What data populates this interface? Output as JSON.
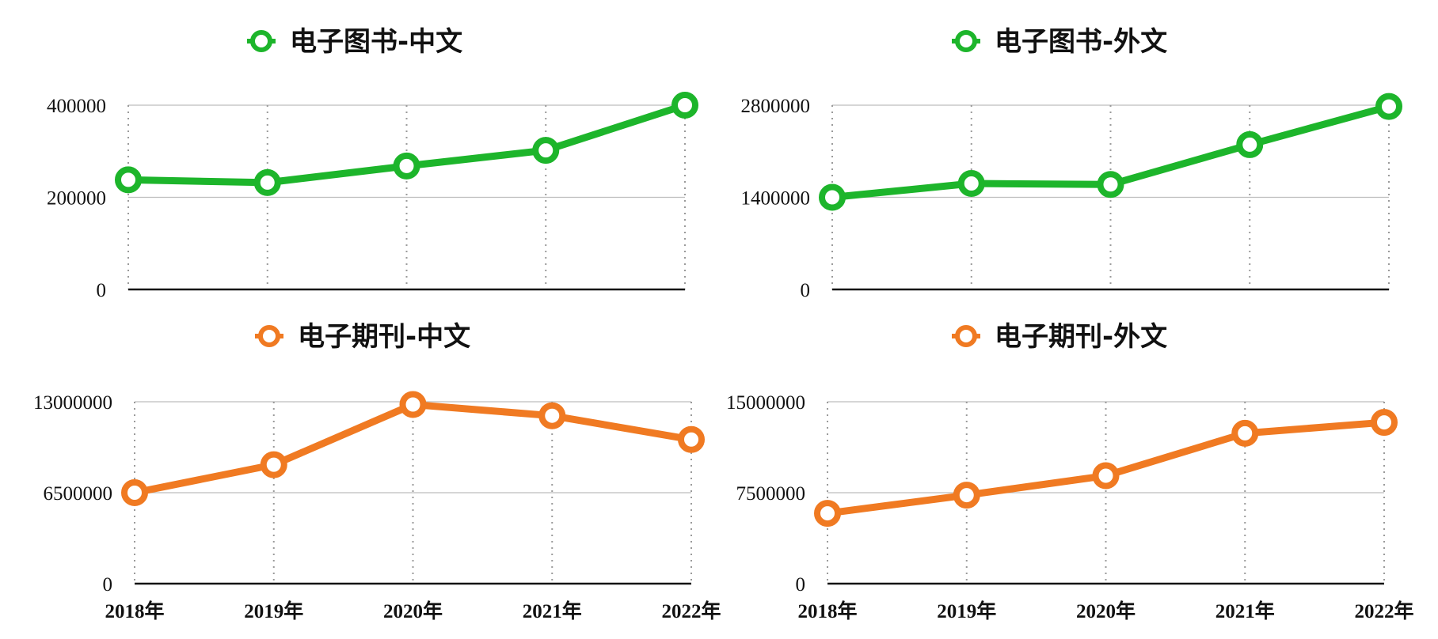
{
  "chart_data": [
    {
      "type": "line",
      "series": [
        {
          "name": "电子图书-中文",
          "color": "#1db52b",
          "values": [
            238000,
            232000,
            268000,
            302000,
            400000
          ]
        }
      ],
      "categories": [
        "2018年",
        "2019年",
        "2020年",
        "2021年",
        "2022年"
      ],
      "yticks": [
        "0",
        "200000",
        "400000"
      ],
      "ylim": [
        0,
        400000
      ],
      "show_x_tick_labels": false,
      "grid": true,
      "legend_position": "top-center"
    },
    {
      "type": "line",
      "series": [
        {
          "name": "电子图书-外文",
          "color": "#1db52b",
          "values": [
            1400000,
            1610000,
            1595000,
            2200000,
            2780000
          ]
        }
      ],
      "categories": [
        "2018年",
        "2019年",
        "2020年",
        "2021年",
        "2022年"
      ],
      "yticks": [
        "0",
        "1400000",
        "2800000"
      ],
      "ylim": [
        0,
        2800000
      ],
      "show_x_tick_labels": false,
      "grid": true,
      "legend_position": "top-center"
    },
    {
      "type": "line",
      "series": [
        {
          "name": "电子期刊-中文",
          "color": "#f07a22",
          "values": [
            6500000,
            8500000,
            12800000,
            12000000,
            10300000
          ]
        }
      ],
      "categories": [
        "2018年",
        "2019年",
        "2020年",
        "2021年",
        "2022年"
      ],
      "yticks": [
        "0",
        "6500000",
        "13000000"
      ],
      "ylim": [
        0,
        13000000
      ],
      "show_x_tick_labels": true,
      "grid": true,
      "legend_position": "top-center"
    },
    {
      "type": "line",
      "series": [
        {
          "name": "电子期刊-外文",
          "color": "#f07a22",
          "values": [
            5800000,
            7300000,
            8900000,
            12400000,
            13300000
          ]
        }
      ],
      "categories": [
        "2018年",
        "2019年",
        "2020年",
        "2021年",
        "2022年"
      ],
      "yticks": [
        "0",
        "7500000",
        "15000000"
      ],
      "ylim": [
        0,
        15000000
      ],
      "show_x_tick_labels": true,
      "grid": true,
      "legend_position": "top-center"
    }
  ]
}
